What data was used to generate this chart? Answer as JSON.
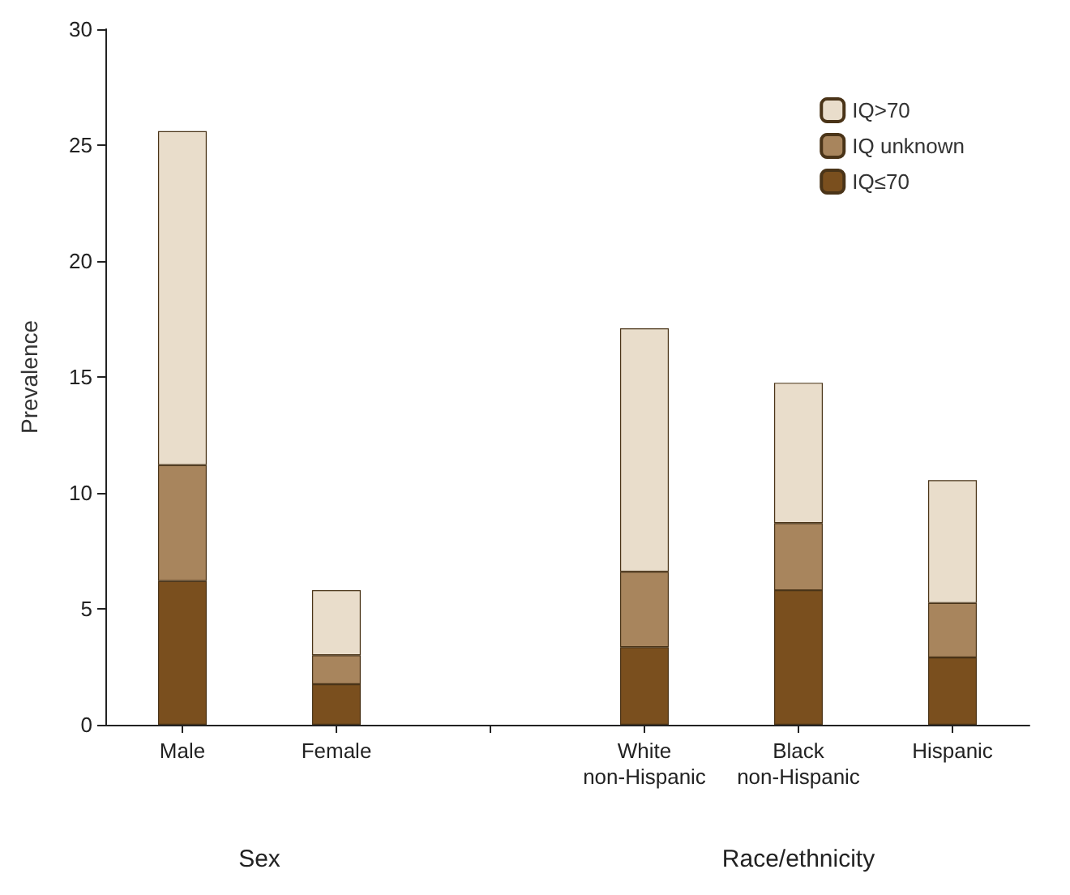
{
  "chart_data": {
    "type": "bar",
    "stacked": true,
    "ylabel": "Prevalence",
    "categories": [
      "Male",
      "Female",
      null,
      "White\nnon-Hispanic",
      "Black\nnon-Hispanic",
      "Hispanic"
    ],
    "series": [
      {
        "name": "IQ≤70",
        "color": "#7a4f1e",
        "values": [
          6.2,
          1.75,
          null,
          3.35,
          5.8,
          2.9
        ]
      },
      {
        "name": "IQ unknown",
        "color": "#a8855d",
        "values": [
          5.0,
          1.25,
          null,
          3.25,
          2.9,
          2.35
        ]
      },
      {
        "name": "IQ>70",
        "color": "#e9ddcb",
        "values": [
          14.4,
          2.8,
          null,
          10.5,
          6.05,
          5.3
        ]
      }
    ],
    "ylim": [
      0,
      30
    ],
    "yticks": [
      0,
      5,
      10,
      15,
      20,
      25,
      30
    ],
    "grid": false,
    "legend": "top right",
    "annotations": [
      "Sex",
      "Race/ethnicity"
    ]
  }
}
